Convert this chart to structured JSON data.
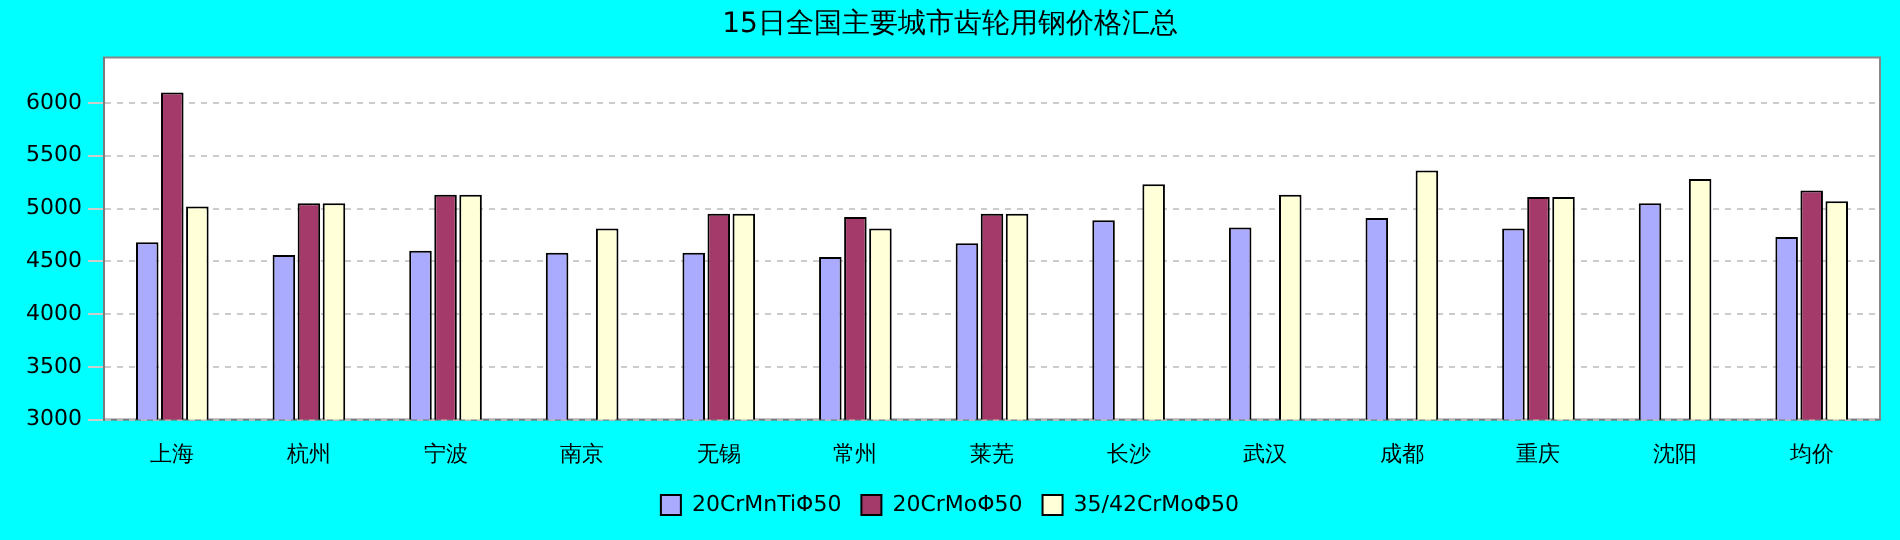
{
  "chart_data": {
    "type": "bar",
    "title": "15日全国主要城市齿轮用钢价格汇总",
    "categories": [
      "上海",
      "杭州",
      "宁波",
      "南京",
      "无锡",
      "常州",
      "莱芜",
      "长沙",
      "武汉",
      "成都",
      "重庆",
      "沈阳",
      "均价"
    ],
    "series": [
      {
        "name": "20CrMnTiΦ50",
        "color": "#aaaaff",
        "values": [
          4680,
          4560,
          4600,
          4580,
          4580,
          4540,
          4670,
          4890,
          4820,
          4910,
          4810,
          5050,
          4730
        ]
      },
      {
        "name": "20CrMoΦ50",
        "color": "#a33a6a",
        "values": [
          6100,
          5050,
          5130,
          null,
          4950,
          4920,
          4950,
          null,
          null,
          null,
          5110,
          null,
          5170
        ]
      },
      {
        "name": "35/42CrMoΦ50",
        "color": "#ffffd8",
        "values": [
          5020,
          5050,
          5130,
          4810,
          4950,
          4810,
          4950,
          5230,
          5130,
          5360,
          5110,
          5280,
          5070
        ]
      }
    ],
    "ylim": [
      3000,
      6430
    ],
    "yticks": [
      3000,
      3500,
      4000,
      4500,
      5000,
      5500,
      6000
    ],
    "grid": "y",
    "legend": "bottom"
  }
}
